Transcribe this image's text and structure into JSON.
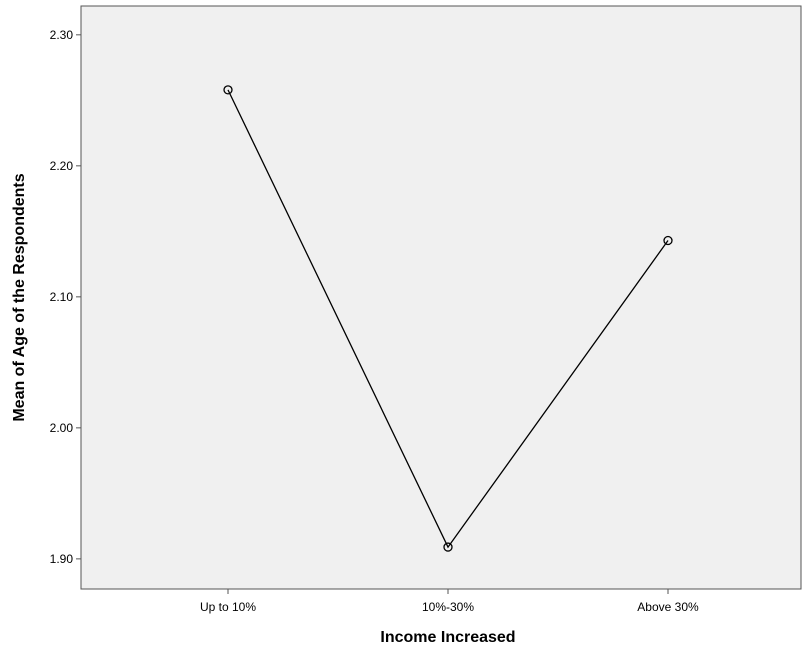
{
  "chart_data": {
    "type": "line",
    "title": "",
    "xlabel": "Income Increased",
    "ylabel": "Mean of Age of the Respondents",
    "categories": [
      "Up to 10%",
      "10%-30%",
      "Above 30%"
    ],
    "values": [
      2.258,
      1.909,
      2.143
    ],
    "y_ticks": [
      1.9,
      2.0,
      2.1,
      2.2,
      2.3
    ],
    "y_tick_labels": [
      "1.90",
      "2.00",
      "2.10",
      "2.20",
      "2.30"
    ],
    "ylim": [
      1.877,
      2.322
    ],
    "grid": false,
    "legend": "none",
    "colors": {
      "plot_background": "#f0f0f0",
      "line": "#000000",
      "marker_stroke": "#000000",
      "axis": "#555555"
    }
  }
}
